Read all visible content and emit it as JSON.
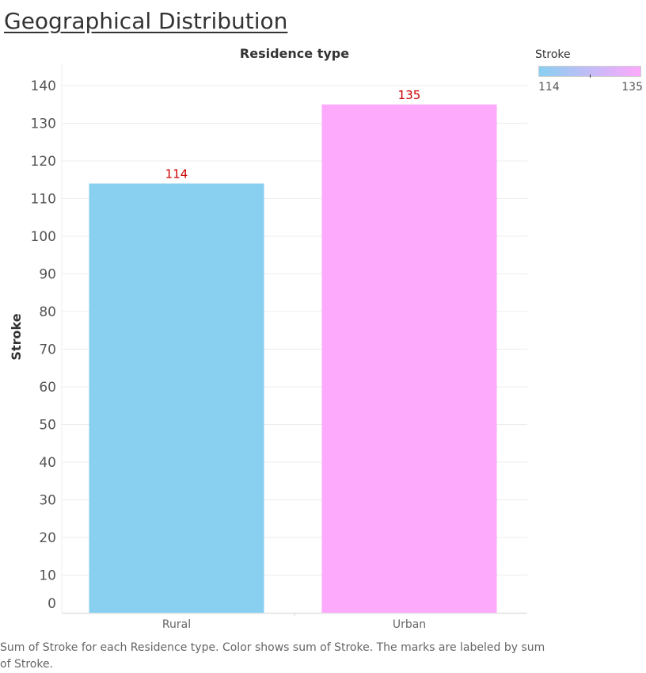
{
  "title": "Geographical Distribution",
  "caption": "Sum of Stroke for each Residence type.  Color shows sum of Stroke.  The marks are labeled by sum of Stroke.",
  "legend": {
    "title": "Stroke",
    "min_label": "114",
    "max_label": "135"
  },
  "colors": {
    "low": "#89CFF0",
    "high": "#FDA9FC",
    "label": "#CC0000",
    "grid": "#ececec"
  },
  "chart_data": {
    "type": "bar",
    "title": "Residence type",
    "xlabel": "",
    "ylabel": "Stroke",
    "categories": [
      "Rural",
      "Urban"
    ],
    "values": [
      114,
      135
    ],
    "yticks": [
      0,
      10,
      20,
      30,
      40,
      50,
      60,
      70,
      80,
      90,
      100,
      110,
      120,
      130,
      140
    ],
    "ylim": [
      0,
      140
    ],
    "grid": true
  }
}
